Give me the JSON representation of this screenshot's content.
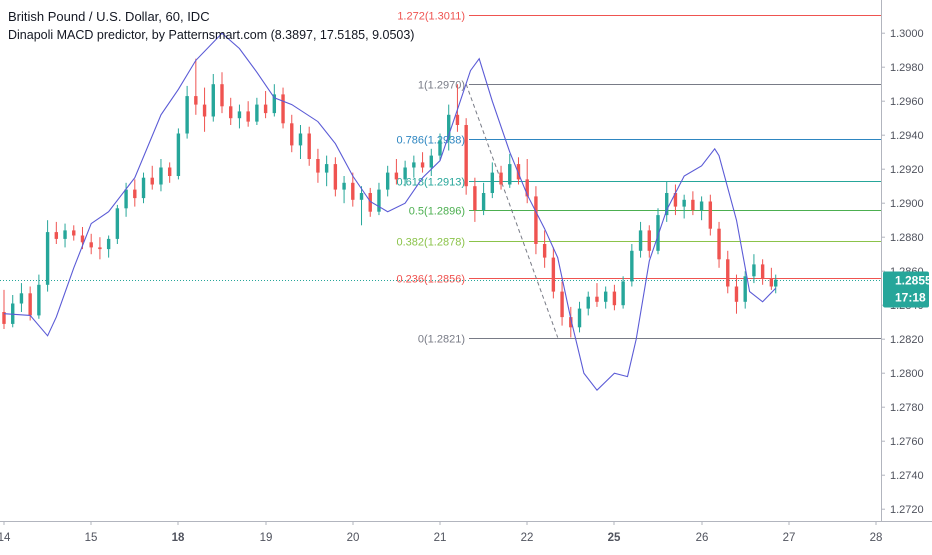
{
  "header": {
    "title": "British Pound / U.S. Dollar, 60, IDC",
    "study": "Dinapoli MACD predictor, by Patternsmart.com (8.3897, 17.5185, 9.0503)"
  },
  "price_badge": {
    "value": "1.2855",
    "countdown": "17:18",
    "color": "#26a69a"
  },
  "colors": {
    "up": "#26a69a",
    "down": "#ef5350",
    "oscillator": "#5b5bd6",
    "current_line": "#26a69a",
    "text": "#131722",
    "axis_text": "#50535e"
  },
  "chart_data": {
    "type": "candlestick",
    "symbol": "GBPUSD",
    "timeframe": "60",
    "x_labels": [
      "14",
      "15",
      "18",
      "19",
      "20",
      "21",
      "22",
      "25",
      "26",
      "27",
      "28"
    ],
    "y_ticks": [
      "1.3000",
      "1.2980",
      "1.2960",
      "1.2940",
      "1.2920",
      "1.2900",
      "1.2880",
      "1.2860",
      "1.2840",
      "1.2820",
      "1.2800",
      "1.2780",
      "1.2760",
      "1.2740",
      "1.2720"
    ],
    "ylim": [
      1.2716,
      1.3016
    ],
    "current_price": 1.2855,
    "candles": [
      {
        "day": 0.0,
        "o": 1.2836,
        "h": 1.2849,
        "l": 1.2826,
        "c": 1.2829
      },
      {
        "day": 0.1,
        "o": 1.2829,
        "h": 1.2846,
        "l": 1.2827,
        "c": 1.2841
      },
      {
        "day": 0.2,
        "o": 1.2841,
        "h": 1.2853,
        "l": 1.2836,
        "c": 1.2847
      },
      {
        "day": 0.3,
        "o": 1.2847,
        "h": 1.2851,
        "l": 1.2831,
        "c": 1.2834
      },
      {
        "day": 0.4,
        "o": 1.2834,
        "h": 1.2858,
        "l": 1.2832,
        "c": 1.2852
      },
      {
        "day": 0.5,
        "o": 1.2852,
        "h": 1.289,
        "l": 1.2848,
        "c": 1.2883
      },
      {
        "day": 0.6,
        "o": 1.2883,
        "h": 1.2889,
        "l": 1.2876,
        "c": 1.2879
      },
      {
        "day": 0.7,
        "o": 1.2879,
        "h": 1.2888,
        "l": 1.2874,
        "c": 1.2884
      },
      {
        "day": 0.8,
        "o": 1.2884,
        "h": 1.2887,
        "l": 1.2878,
        "c": 1.2881
      },
      {
        "day": 0.9,
        "o": 1.2881,
        "h": 1.2886,
        "l": 1.2873,
        "c": 1.2877
      },
      {
        "day": 1.0,
        "o": 1.2877,
        "h": 1.2882,
        "l": 1.287,
        "c": 1.2874
      },
      {
        "day": 1.1,
        "o": 1.2874,
        "h": 1.288,
        "l": 1.2867,
        "c": 1.2873
      },
      {
        "day": 1.2,
        "o": 1.2873,
        "h": 1.2881,
        "l": 1.2868,
        "c": 1.2879
      },
      {
        "day": 1.3,
        "o": 1.2879,
        "h": 1.2899,
        "l": 1.2876,
        "c": 1.2897
      },
      {
        "day": 1.4,
        "o": 1.2897,
        "h": 1.2912,
        "l": 1.2892,
        "c": 1.2908
      },
      {
        "day": 1.5,
        "o": 1.2908,
        "h": 1.2914,
        "l": 1.2898,
        "c": 1.2903
      },
      {
        "day": 1.6,
        "o": 1.2903,
        "h": 1.2918,
        "l": 1.29,
        "c": 1.2915
      },
      {
        "day": 1.7,
        "o": 1.2915,
        "h": 1.2922,
        "l": 1.2908,
        "c": 1.2911
      },
      {
        "day": 1.8,
        "o": 1.2911,
        "h": 1.2926,
        "l": 1.2907,
        "c": 1.2921
      },
      {
        "day": 1.9,
        "o": 1.2921,
        "h": 1.2924,
        "l": 1.2912,
        "c": 1.2916
      },
      {
        "day": 2.0,
        "o": 1.2916,
        "h": 1.2944,
        "l": 1.2914,
        "c": 1.2941
      },
      {
        "day": 2.1,
        "o": 1.2941,
        "h": 1.2969,
        "l": 1.2938,
        "c": 1.2963
      },
      {
        "day": 2.2,
        "o": 1.2963,
        "h": 1.2985,
        "l": 1.2952,
        "c": 1.2958
      },
      {
        "day": 2.3,
        "o": 1.2958,
        "h": 1.2968,
        "l": 1.2942,
        "c": 1.2951
      },
      {
        "day": 2.4,
        "o": 1.2951,
        "h": 1.2976,
        "l": 1.2948,
        "c": 1.297
      },
      {
        "day": 2.5,
        "o": 1.297,
        "h": 1.2977,
        "l": 1.2953,
        "c": 1.2957
      },
      {
        "day": 2.6,
        "o": 1.2957,
        "h": 1.2962,
        "l": 1.2946,
        "c": 1.295
      },
      {
        "day": 2.7,
        "o": 1.295,
        "h": 1.2958,
        "l": 1.2944,
        "c": 1.2954
      },
      {
        "day": 2.8,
        "o": 1.2954,
        "h": 1.296,
        "l": 1.2945,
        "c": 1.2948
      },
      {
        "day": 2.9,
        "o": 1.2948,
        "h": 1.2962,
        "l": 1.2946,
        "c": 1.2958
      },
      {
        "day": 3.0,
        "o": 1.2958,
        "h": 1.2966,
        "l": 1.295,
        "c": 1.2953
      },
      {
        "day": 3.1,
        "o": 1.2953,
        "h": 1.297,
        "l": 1.2951,
        "c": 1.2964
      },
      {
        "day": 3.2,
        "o": 1.2964,
        "h": 1.2968,
        "l": 1.2944,
        "c": 1.2947
      },
      {
        "day": 3.3,
        "o": 1.2947,
        "h": 1.2952,
        "l": 1.293,
        "c": 1.2934
      },
      {
        "day": 3.4,
        "o": 1.2934,
        "h": 1.2946,
        "l": 1.2926,
        "c": 1.2941
      },
      {
        "day": 3.5,
        "o": 1.2941,
        "h": 1.2945,
        "l": 1.2922,
        "c": 1.2926
      },
      {
        "day": 3.6,
        "o": 1.2926,
        "h": 1.2932,
        "l": 1.2912,
        "c": 1.2918
      },
      {
        "day": 3.7,
        "o": 1.2918,
        "h": 1.2928,
        "l": 1.291,
        "c": 1.2923
      },
      {
        "day": 3.8,
        "o": 1.2923,
        "h": 1.2927,
        "l": 1.2904,
        "c": 1.2908
      },
      {
        "day": 3.9,
        "o": 1.2908,
        "h": 1.2916,
        "l": 1.29,
        "c": 1.2912
      },
      {
        "day": 4.0,
        "o": 1.2912,
        "h": 1.2918,
        "l": 1.2898,
        "c": 1.2902
      },
      {
        "day": 4.1,
        "o": 1.2902,
        "h": 1.291,
        "l": 1.2887,
        "c": 1.2906
      },
      {
        "day": 4.2,
        "o": 1.2906,
        "h": 1.2909,
        "l": 1.2892,
        "c": 1.2895
      },
      {
        "day": 4.3,
        "o": 1.2895,
        "h": 1.2912,
        "l": 1.2893,
        "c": 1.2908
      },
      {
        "day": 4.4,
        "o": 1.2908,
        "h": 1.2922,
        "l": 1.2904,
        "c": 1.2918
      },
      {
        "day": 4.5,
        "o": 1.2918,
        "h": 1.2926,
        "l": 1.2911,
        "c": 1.2914
      },
      {
        "day": 4.6,
        "o": 1.2914,
        "h": 1.2925,
        "l": 1.291,
        "c": 1.2921
      },
      {
        "day": 4.7,
        "o": 1.2921,
        "h": 1.2928,
        "l": 1.2915,
        "c": 1.2924
      },
      {
        "day": 4.8,
        "o": 1.2924,
        "h": 1.293,
        "l": 1.2918,
        "c": 1.2921
      },
      {
        "day": 4.9,
        "o": 1.2921,
        "h": 1.2932,
        "l": 1.2916,
        "c": 1.2928
      },
      {
        "day": 5.0,
        "o": 1.2928,
        "h": 1.2941,
        "l": 1.2925,
        "c": 1.2937
      },
      {
        "day": 5.1,
        "o": 1.2937,
        "h": 1.2958,
        "l": 1.2931,
        "c": 1.2952
      },
      {
        "day": 5.2,
        "o": 1.2952,
        "h": 1.297,
        "l": 1.2942,
        "c": 1.2946
      },
      {
        "day": 5.3,
        "o": 1.2946,
        "h": 1.295,
        "l": 1.2905,
        "c": 1.291
      },
      {
        "day": 5.4,
        "o": 1.291,
        "h": 1.2915,
        "l": 1.2889,
        "c": 1.2896
      },
      {
        "day": 5.5,
        "o": 1.2896,
        "h": 1.2912,
        "l": 1.2893,
        "c": 1.2906
      },
      {
        "day": 5.6,
        "o": 1.2906,
        "h": 1.2924,
        "l": 1.2903,
        "c": 1.2918
      },
      {
        "day": 5.7,
        "o": 1.2918,
        "h": 1.2922,
        "l": 1.2908,
        "c": 1.2911
      },
      {
        "day": 5.8,
        "o": 1.2911,
        "h": 1.2929,
        "l": 1.2909,
        "c": 1.2923
      },
      {
        "day": 5.9,
        "o": 1.2923,
        "h": 1.2927,
        "l": 1.2911,
        "c": 1.2914
      },
      {
        "day": 6.0,
        "o": 1.2914,
        "h": 1.2926,
        "l": 1.29,
        "c": 1.2904
      },
      {
        "day": 6.1,
        "o": 1.2904,
        "h": 1.291,
        "l": 1.287,
        "c": 1.2876
      },
      {
        "day": 6.2,
        "o": 1.2876,
        "h": 1.2884,
        "l": 1.2862,
        "c": 1.2868
      },
      {
        "day": 6.3,
        "o": 1.2868,
        "h": 1.2874,
        "l": 1.2844,
        "c": 1.2848
      },
      {
        "day": 6.4,
        "o": 1.2848,
        "h": 1.2854,
        "l": 1.2828,
        "c": 1.2833
      },
      {
        "day": 6.5,
        "o": 1.2833,
        "h": 1.2839,
        "l": 1.2821,
        "c": 1.2827
      },
      {
        "day": 6.6,
        "o": 1.2827,
        "h": 1.2842,
        "l": 1.2824,
        "c": 1.2838
      },
      {
        "day": 6.7,
        "o": 1.2838,
        "h": 1.2848,
        "l": 1.2834,
        "c": 1.2845
      },
      {
        "day": 6.8,
        "o": 1.2845,
        "h": 1.2853,
        "l": 1.2839,
        "c": 1.2842
      },
      {
        "day": 6.9,
        "o": 1.2842,
        "h": 1.2851,
        "l": 1.2838,
        "c": 1.2848
      },
      {
        "day": 7.0,
        "o": 1.2848,
        "h": 1.2852,
        "l": 1.2837,
        "c": 1.284
      },
      {
        "day": 7.1,
        "o": 1.284,
        "h": 1.2857,
        "l": 1.2838,
        "c": 1.2854
      },
      {
        "day": 7.2,
        "o": 1.2854,
        "h": 1.2876,
        "l": 1.2851,
        "c": 1.2872
      },
      {
        "day": 7.3,
        "o": 1.2872,
        "h": 1.2889,
        "l": 1.2868,
        "c": 1.2884
      },
      {
        "day": 7.4,
        "o": 1.2884,
        "h": 1.2887,
        "l": 1.2868,
        "c": 1.2872
      },
      {
        "day": 7.5,
        "o": 1.2872,
        "h": 1.2897,
        "l": 1.287,
        "c": 1.2893
      },
      {
        "day": 7.6,
        "o": 1.2893,
        "h": 1.2913,
        "l": 1.2889,
        "c": 1.2906
      },
      {
        "day": 7.7,
        "o": 1.2906,
        "h": 1.2911,
        "l": 1.2893,
        "c": 1.2898
      },
      {
        "day": 7.8,
        "o": 1.2898,
        "h": 1.2905,
        "l": 1.2891,
        "c": 1.2902
      },
      {
        "day": 7.9,
        "o": 1.2902,
        "h": 1.2907,
        "l": 1.2893,
        "c": 1.2896
      },
      {
        "day": 8.0,
        "o": 1.2896,
        "h": 1.2904,
        "l": 1.289,
        "c": 1.2901
      },
      {
        "day": 8.1,
        "o": 1.2901,
        "h": 1.2905,
        "l": 1.2881,
        "c": 1.2885
      },
      {
        "day": 8.2,
        "o": 1.2885,
        "h": 1.2889,
        "l": 1.2862,
        "c": 1.2867
      },
      {
        "day": 8.3,
        "o": 1.2867,
        "h": 1.2872,
        "l": 1.2847,
        "c": 1.2851
      },
      {
        "day": 8.4,
        "o": 1.2851,
        "h": 1.2858,
        "l": 1.2835,
        "c": 1.2842
      },
      {
        "day": 8.5,
        "o": 1.2842,
        "h": 1.286,
        "l": 1.2838,
        "c": 1.2857
      },
      {
        "day": 8.6,
        "o": 1.2857,
        "h": 1.287,
        "l": 1.2853,
        "c": 1.2864
      },
      {
        "day": 8.7,
        "o": 1.2864,
        "h": 1.2867,
        "l": 1.2852,
        "c": 1.2856
      },
      {
        "day": 8.8,
        "o": 1.2856,
        "h": 1.2862,
        "l": 1.2849,
        "c": 1.2851
      },
      {
        "day": 8.85,
        "o": 1.2851,
        "h": 1.2858,
        "l": 1.2847,
        "c": 1.2855
      }
    ],
    "oscillator": {
      "name": "Dinapoli MACD predictor",
      "points": [
        [
          0.0,
          1.2835
        ],
        [
          0.3,
          1.2834
        ],
        [
          0.5,
          1.2822
        ],
        [
          0.6,
          1.2833
        ],
        [
          0.8,
          1.2862
        ],
        [
          1.0,
          1.2888
        ],
        [
          1.2,
          1.2895
        ],
        [
          1.5,
          1.2915
        ],
        [
          1.8,
          1.2952
        ],
        [
          2.0,
          1.2967
        ],
        [
          2.2,
          1.2984
        ],
        [
          2.5,
          1.3
        ],
        [
          2.7,
          1.2991
        ],
        [
          2.9,
          1.2977
        ],
        [
          3.1,
          1.2962
        ],
        [
          3.3,
          1.2958
        ],
        [
          3.6,
          1.2948
        ],
        [
          3.8,
          1.2935
        ],
        [
          4.0,
          1.2916
        ],
        [
          4.2,
          1.2901
        ],
        [
          4.4,
          1.2895
        ],
        [
          4.6,
          1.29
        ],
        [
          4.8,
          1.2915
        ],
        [
          5.0,
          1.2925
        ],
        [
          5.2,
          1.2955
        ],
        [
          5.35,
          1.2978
        ],
        [
          5.45,
          1.2985
        ],
        [
          5.6,
          1.296
        ],
        [
          5.8,
          1.293
        ],
        [
          6.0,
          1.2905
        ],
        [
          6.2,
          1.2885
        ],
        [
          6.35,
          1.2868
        ],
        [
          6.5,
          1.2832
        ],
        [
          6.65,
          1.28
        ],
        [
          6.8,
          1.279
        ],
        [
          7.0,
          1.28
        ],
        [
          7.15,
          1.2798
        ],
        [
          7.25,
          1.282
        ],
        [
          7.4,
          1.2866
        ],
        [
          7.6,
          1.2896
        ],
        [
          7.8,
          1.2916
        ],
        [
          8.0,
          1.2922
        ],
        [
          8.15,
          1.2932
        ],
        [
          8.2,
          1.2928
        ],
        [
          8.4,
          1.289
        ],
        [
          8.55,
          1.2848
        ],
        [
          8.7,
          1.2842
        ],
        [
          8.85,
          1.285
        ]
      ]
    },
    "fibonacci": [
      {
        "label": "1.272(1.3011)",
        "price": 1.3011,
        "color": "#ef5350"
      },
      {
        "label": "1(1.2970)",
        "price": 1.297,
        "color": "#787b86"
      },
      {
        "label": "0.786(1.2938)",
        "price": 1.2938,
        "color": "#2e86c1"
      },
      {
        "label": "0.618(1.2913)",
        "price": 1.2913,
        "color": "#26a69a"
      },
      {
        "label": "0.5(1.2896)",
        "price": 1.2896,
        "color": "#4caf50"
      },
      {
        "label": "0.382(1.2878)",
        "price": 1.2878,
        "color": "#8bc34a"
      },
      {
        "label": "0.236(1.2856)",
        "price": 1.2856,
        "color": "#ef5350"
      },
      {
        "label": "0(1.2821)",
        "price": 1.2821,
        "color": "#787b86"
      }
    ],
    "fib_trendline": {
      "from": [
        5.3,
        1.297
      ],
      "to": [
        6.35,
        1.2821
      ]
    },
    "grid": false,
    "legend": "top-left"
  }
}
